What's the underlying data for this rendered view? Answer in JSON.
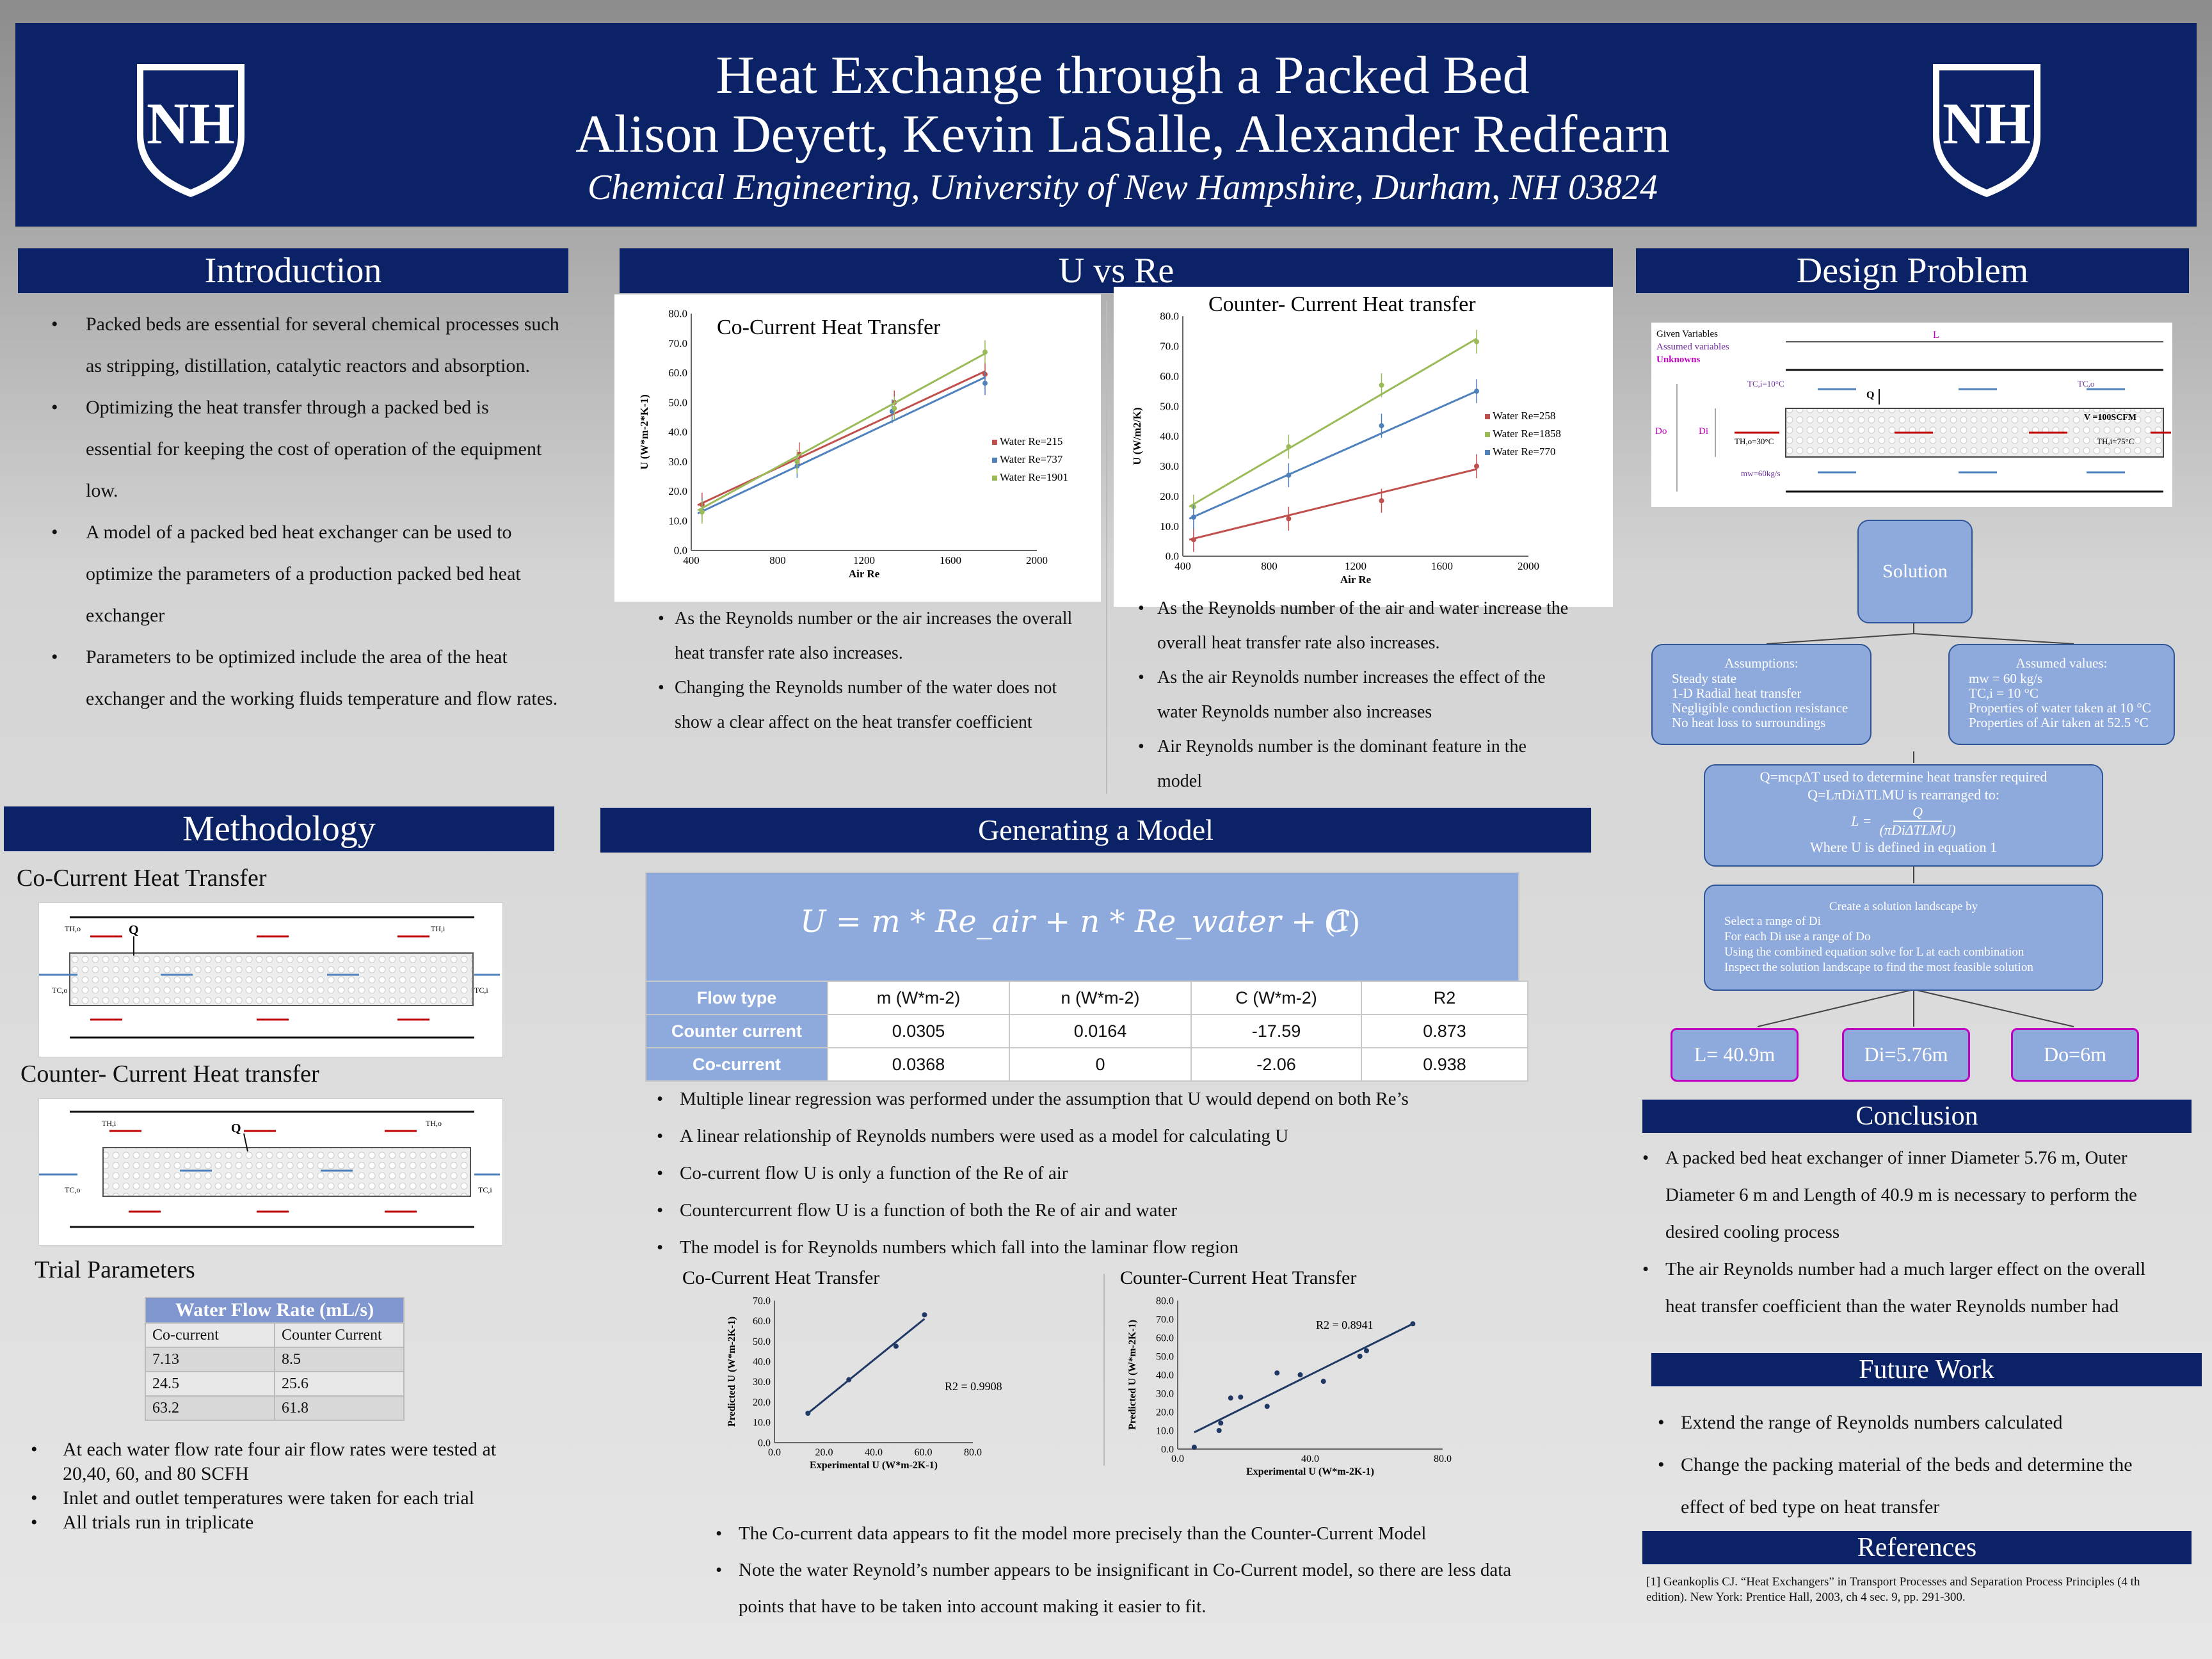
{
  "header": {
    "title": "Heat Exchange through a Packed Bed",
    "authors": "Alison Deyett, Kevin LaSalle, Alexander Redfearn",
    "affiliation": "Chemical Engineering, University of New Hampshire, Durham, NH 03824",
    "logo_text": "NH"
  },
  "introduction": {
    "heading": "Introduction",
    "bullets": [
      "Packed beds are essential for several chemical processes such as stripping, distillation, catalytic reactors and absorption.",
      "Optimizing the heat transfer through a packed bed is essential for keeping the cost of operation of the equipment low.",
      "A model of a packed bed heat exchanger can be used to optimize the parameters of a production packed bed heat exchanger",
      "Parameters to be optimized include the area of the heat exchanger  and the working fluids temperature and flow rates."
    ]
  },
  "methodology": {
    "heading": "Methodology",
    "cocurrent_heading": "Co-Current Heat Transfer",
    "countercurrent_heading": "Counter- Current Heat transfer",
    "fig_labels": {
      "th_o": "TH,o",
      "th_i": "TH,i",
      "tc_o": "TC,o",
      "tc_i": "TC,i",
      "q": "Q"
    },
    "trial_heading": "Trial Parameters",
    "table": {
      "title": "Water Flow Rate (mL/s)",
      "columns": [
        "Co-current",
        "Counter Current"
      ],
      "rows": [
        [
          "7.13",
          "8.5"
        ],
        [
          "24.5",
          "25.6"
        ],
        [
          "63.2",
          "61.8"
        ]
      ]
    },
    "bullets": [
      "At each water flow rate four air flow rates were tested at 20,40, 60, and 80 SCFH",
      "Inlet and outlet temperatures were taken for each trial",
      "All trials run in triplicate"
    ]
  },
  "uvsre": {
    "heading": "U vs Re",
    "left_bullets": [
      "As the Reynolds number or the air increases the overall heat transfer rate also increases.",
      "Changing the Reynolds number of the water does not show a clear affect on the heat transfer coefficient"
    ],
    "right_bullets": [
      "As the Reynolds number of the air and water increase the overall heat transfer rate also increases.",
      "As the air Reynolds number increases the effect of the water Reynolds number also increases",
      "Air Reynolds number is the dominant feature in the model"
    ]
  },
  "model": {
    "heading": "Generating a Model",
    "equation": "U = m * Re_air + n * Re_water + C",
    "equation_number": "(1)",
    "columns": [
      "Flow type",
      "m (W*m-2)",
      "n (W*m-2)",
      "C (W*m-2)",
      "R2"
    ],
    "rows": [
      [
        "Counter current",
        "0.0305",
        "0.0164",
        "-17.59",
        "0.873"
      ],
      [
        "Co-current",
        "0.0368",
        "0",
        "-2.06",
        "0.938"
      ]
    ],
    "bullets": [
      "Multiple linear regression was performed under the assumption that U would depend on both Re’s",
      "A linear relationship of Reynolds numbers were used as a model for calculating U",
      "Co-current flow U is only a function of the Re of air",
      "Countercurrent flow U is a function of both the Re of air and water",
      "The model is for Reynolds numbers which fall into the laminar flow region"
    ],
    "bottom_bullets": [
      "The Co-current data appears to fit the model more precisely than the Counter-Current Model",
      "Note the water Reynold’s number appears to be insignificant in Co-Current model, so there are less data points that have to be taken into account making it easier to fit."
    ]
  },
  "design": {
    "heading": "Design Problem",
    "legend": [
      "Given Variables",
      "Assumed variables",
      "Unknowns"
    ],
    "legend_colors": [
      "#222222",
      "#7030a0",
      "#c000c0"
    ],
    "fig_labels": {
      "L": "L",
      "Do": "Do",
      "Di": "Di",
      "Q": "Q",
      "tci": "TC,i=10°C",
      "tco": "TC,o",
      "thi": "TH,i=75°C",
      "tho": "TH,o=30°C",
      "mw": "mw=60kg/s",
      "v": "V =100SCFM"
    },
    "solution": "Solution",
    "assumptions": {
      "title": "Assumptions:",
      "lines": [
        "Steady state",
        "1-D Radial heat transfer",
        "Negligible conduction resistance",
        "No heat loss to surroundings"
      ]
    },
    "assumed_values": {
      "title": "Assumed values:",
      "lines": [
        "mw = 60 kg/s",
        "TC,i = 10 °C",
        "Properties of water taken at 10 °C",
        "Properties of Air taken at 52.5 °C"
      ]
    },
    "equation_box": {
      "line1": "Q=mcpΔT used to determine heat transfer required",
      "line2": "Q=LπDiΔTLMU is rearranged to:",
      "frac_lhs": "L =",
      "frac_num": "Q",
      "frac_den": "(πDiΔTLMU)",
      "line3": "Where U is defined in equation 1"
    },
    "landscape": {
      "title": "Create a solution landscape by",
      "lines": [
        "Select a range of Di",
        "For each Di use a range of Do",
        "Using the combined equation solve for L at each combination",
        "Inspect the solution landscape to find the most feasible solution"
      ]
    },
    "results": [
      "L= 40.9m",
      "Di=5.76m",
      "Do=6m"
    ]
  },
  "conclusion": {
    "heading": "Conclusion",
    "bullets": [
      "A packed bed heat exchanger of inner Diameter 5.76 m, Outer Diameter 6 m and Length of 40.9 m is necessary to perform the desired cooling process",
      "The air Reynolds number had a much larger effect on the overall heat transfer coefficient than the water Reynolds number had"
    ]
  },
  "future": {
    "heading": "Future Work",
    "bullets": [
      "Extend the range of Reynolds numbers calculated",
      "Change the packing material of the beds and determine the effect of bed type on heat transfer"
    ]
  },
  "references": {
    "heading": "References",
    "text": "[1] Geankoplis CJ. “Heat Exchangers” in Transport Processes and Separation Process Principles (4 th edition). New York: Prentice Hall, 2003, ch 4 sec. 9, pp. 291-300."
  },
  "chart_data": [
    {
      "id": "cocurrent_u_vs_re",
      "type": "scatter",
      "title": "Co-Current Heat Transfer",
      "xlabel": "Air Re",
      "ylabel": "U (W*m-2*K-1)",
      "xlim": [
        400,
        2000
      ],
      "ylim": [
        0,
        80
      ],
      "xticks": [
        "400",
        "800",
        "1200",
        "1600",
        "2000"
      ],
      "yticks": [
        "0.0",
        "10.0",
        "20.0",
        "30.0",
        "40.0",
        "50.0",
        "60.0",
        "70.0",
        "80.0"
      ],
      "legend": "right",
      "series": [
        {
          "name": "Water Re=215",
          "color": "#c0504d",
          "x": [
            450,
            900,
            1340,
            1760
          ],
          "y": [
            15.5,
            32.5,
            50.0,
            59.5
          ],
          "fit": [
            [
              430,
              15.3
            ],
            [
              1760,
              60.5
            ]
          ]
        },
        {
          "name": "Water Re=737",
          "color": "#4f81bd",
          "x": [
            450,
            890,
            1330,
            1760
          ],
          "y": [
            13.5,
            28.5,
            47.0,
            56.5
          ],
          "fit": [
            [
              430,
              12.5
            ],
            [
              1760,
              58.5
            ]
          ]
        },
        {
          "name": "Water Re=1901",
          "color": "#9bbb59",
          "x": [
            450,
            890,
            1340,
            1760
          ],
          "y": [
            13.0,
            30.0,
            48.0,
            67.0
          ],
          "fit": [
            [
              430,
              13.5
            ],
            [
              1760,
              66.5
            ]
          ]
        }
      ]
    },
    {
      "id": "countercurrent_u_vs_re",
      "type": "scatter",
      "title": "Counter- Current Heat transfer",
      "xlabel": "Air Re",
      "ylabel": "U (W/m2/K)",
      "xlim": [
        400,
        2000
      ],
      "ylim": [
        0,
        80
      ],
      "xticks": [
        "400",
        "800",
        "1200",
        "1600",
        "2000"
      ],
      "yticks": [
        "0.0",
        "10.0",
        "20.0",
        "30.0",
        "40.0",
        "50.0",
        "60.0",
        "70.0",
        "80.0"
      ],
      "legend": "right",
      "series": [
        {
          "name": "Water Re=258",
          "color": "#c0504d",
          "x": [
            450,
            890,
            1320,
            1760
          ],
          "y": [
            5.5,
            12.5,
            18.5,
            30.0
          ],
          "fit": [
            [
              430,
              5.5
            ],
            [
              1760,
              29.0
            ]
          ]
        },
        {
          "name": "Water Re=1858",
          "color": "#9bbb59",
          "x": [
            450,
            890,
            1320,
            1760
          ],
          "y": [
            16.5,
            36.5,
            57.0,
            71.5
          ],
          "fit": [
            [
              430,
              16.5
            ],
            [
              1760,
              72.5
            ]
          ]
        },
        {
          "name": "Water Re=770",
          "color": "#4f81bd",
          "x": [
            450,
            890,
            1320,
            1760
          ],
          "y": [
            13.0,
            27.0,
            43.5,
            55.0
          ],
          "fit": [
            [
              430,
              12.5
            ],
            [
              1760,
              55.0
            ]
          ]
        }
      ]
    },
    {
      "id": "cocurrent_parity",
      "type": "scatter",
      "title": "Co-Current Heat Transfer",
      "xlabel": "Experimental U (W*m-2K-1)",
      "ylabel": "Predicted U (W*m-2K-1)",
      "xlim": [
        0,
        80
      ],
      "ylim": [
        0,
        70
      ],
      "xticks": [
        "0.0",
        "20.0",
        "40.0",
        "60.0",
        "80.0"
      ],
      "yticks": [
        "0.0",
        "10.0",
        "20.0",
        "30.0",
        "40.0",
        "50.0",
        "60.0",
        "70.0"
      ],
      "annotation": "R2 = 0.9908",
      "series": [
        {
          "name": "",
          "color": "#1f3864",
          "x": [
            13.5,
            30.0,
            49.0,
            60.5
          ],
          "y": [
            14.5,
            31.0,
            47.5,
            63.0
          ],
          "fit": [
            [
              13.5,
              14.5
            ],
            [
              60.5,
              61.0
            ]
          ]
        }
      ]
    },
    {
      "id": "countercurrent_parity",
      "type": "scatter",
      "title": "Counter-Current Heat Transfer",
      "xlabel": "Experimental U (W*m-2K-1)",
      "ylabel": "Predicted U (W*m-2K-1)",
      "xlim": [
        0,
        80
      ],
      "ylim": [
        0,
        80
      ],
      "xticks": [
        "0.0",
        "40.0",
        "80.0"
      ],
      "yticks": [
        "0.0",
        "10.0",
        "20.0",
        "30.0",
        "40.0",
        "50.0",
        "60.0",
        "70.0",
        "80.0"
      ],
      "annotation": "R2 = 0.8941",
      "series": [
        {
          "name": "",
          "color": "#1f3864",
          "x": [
            5,
            12.5,
            13,
            16,
            19,
            27,
            30,
            37,
            44,
            55,
            57,
            71
          ],
          "y": [
            1,
            10,
            14,
            27.5,
            28,
            23,
            41,
            40,
            36.5,
            50,
            53,
            67.5
          ],
          "fit": [
            [
              5,
              9
            ],
            [
              71,
              67.5
            ]
          ]
        }
      ]
    }
  ]
}
